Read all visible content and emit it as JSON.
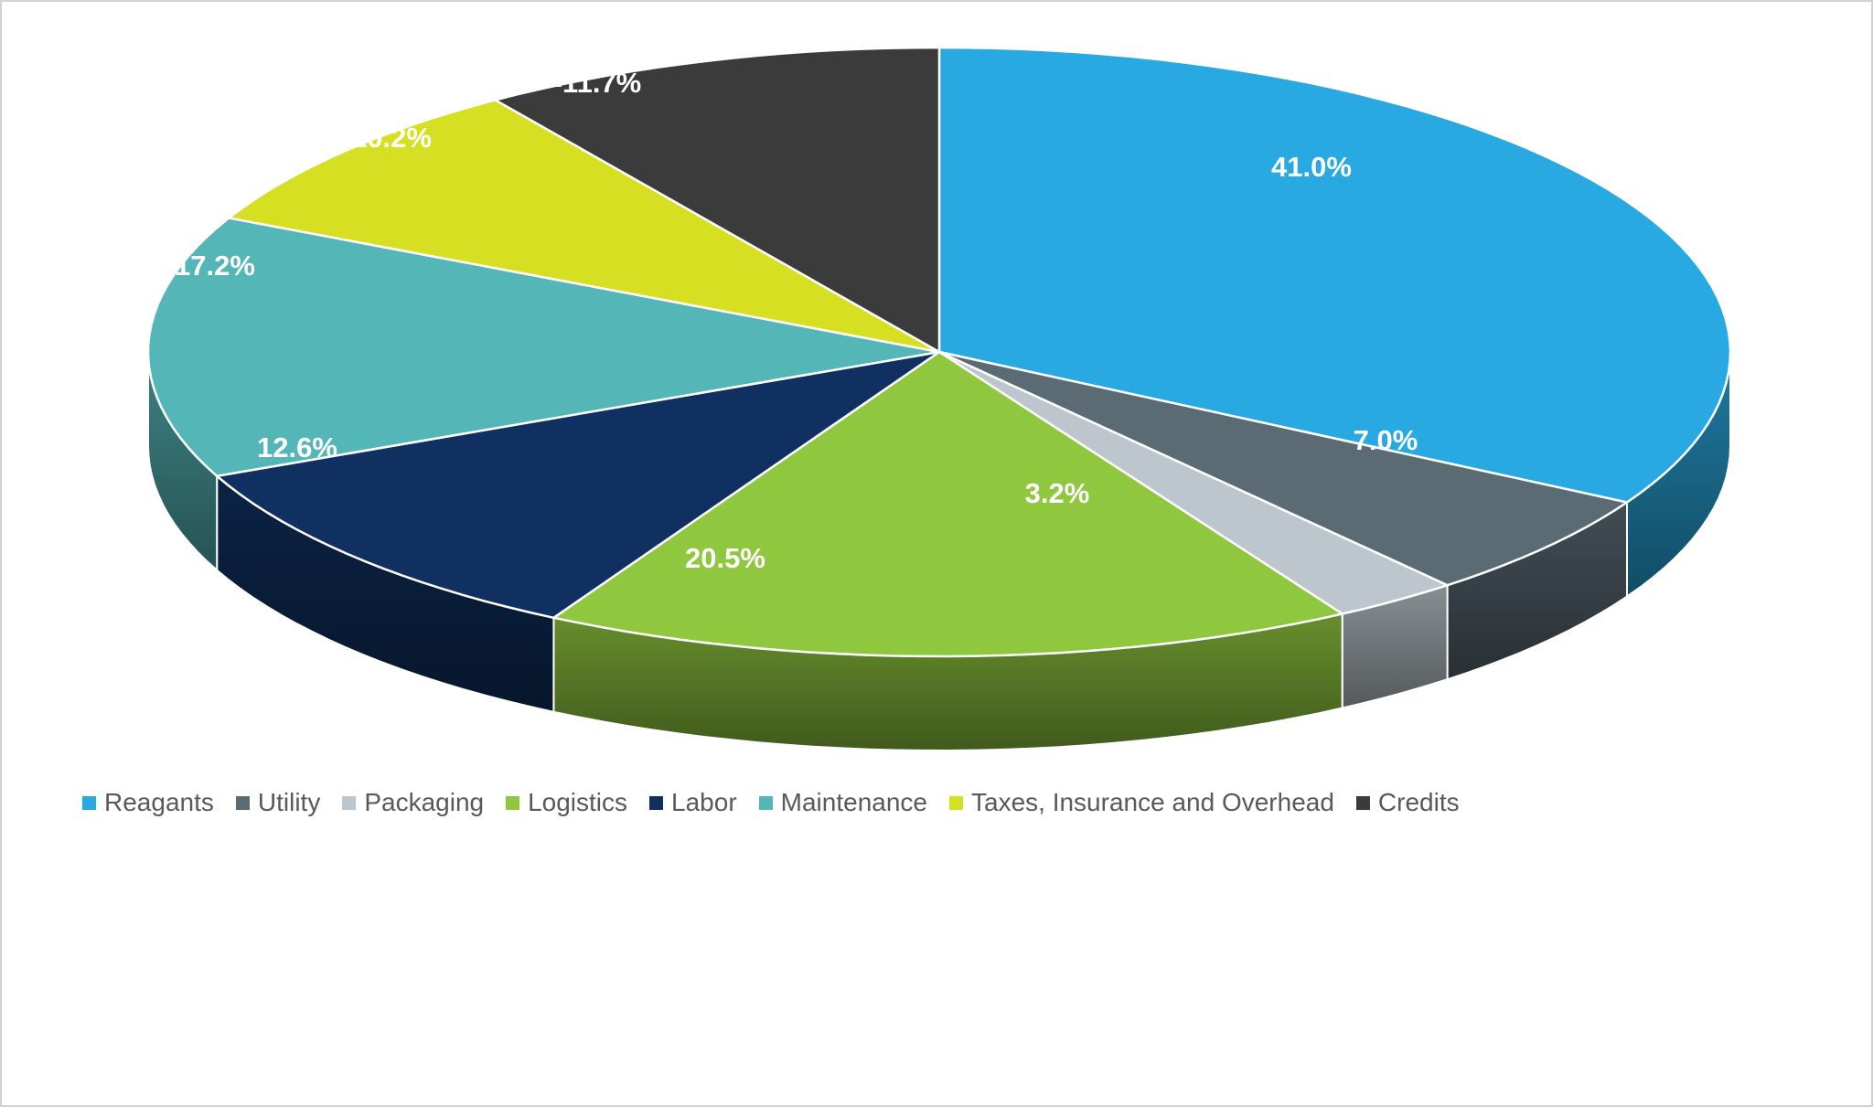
{
  "chart_data": {
    "type": "pie",
    "style": "3d",
    "title": "",
    "categories": [
      "Reagants",
      "Utility",
      "Packaging",
      "Logistics",
      "Labor",
      "Maintenance",
      "Taxes, Insurance and Overhead",
      "Credits"
    ],
    "values": [
      41.0,
      7.0,
      3.2,
      20.5,
      12.6,
      17.2,
      10.2,
      -11.7
    ],
    "data_labels": [
      "41.0%",
      "7.0%",
      "3.2%",
      "20.5%",
      "12.6%",
      "17.2%",
      "10.2%",
      "-11.7%"
    ],
    "colors": [
      "#29A9E1",
      "#5A6B74",
      "#BDC6CC",
      "#8FC73E",
      "#0F3060",
      "#55B6B8",
      "#D7DF23",
      "#3B3B3B"
    ],
    "legend_position": "bottom",
    "data_label_color": "#FFFFFF",
    "legend_text_color": "#595959",
    "slice_border_color": "#FFFFFF",
    "frame_border_color": "#D2D2D2",
    "background_color": "#FFFFFF"
  }
}
